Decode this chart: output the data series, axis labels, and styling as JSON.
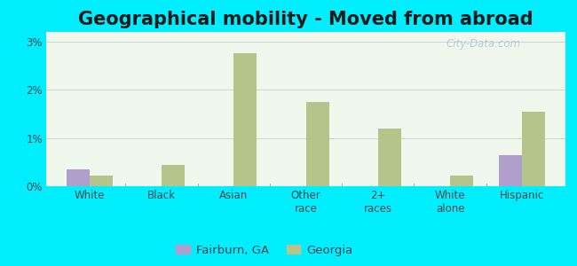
{
  "title": "Geographical mobility - Moved from abroad",
  "categories": [
    "White",
    "Black",
    "Asian",
    "Other\nrace",
    "2+\nraces",
    "White\nalone",
    "Hispanic"
  ],
  "fairburn_values": [
    0.35,
    0.0,
    0.0,
    0.0,
    0.0,
    0.0,
    0.65
  ],
  "georgia_values": [
    0.22,
    0.45,
    2.75,
    1.75,
    1.2,
    0.22,
    1.55
  ],
  "fairburn_color": "#b09fcc",
  "georgia_color": "#b5c48a",
  "outer_background": "#00eeff",
  "ylim": [
    0,
    3.2
  ],
  "yticks": [
    0,
    1,
    2,
    3
  ],
  "ytick_labels": [
    "0%",
    "1%",
    "2%",
    "3%"
  ],
  "bar_width": 0.32,
  "legend_fairburn": "Fairburn, GA",
  "legend_georgia": "Georgia",
  "title_fontsize": 15,
  "tick_fontsize": 8.5,
  "legend_fontsize": 9.5,
  "watermark": "City-Data.com"
}
